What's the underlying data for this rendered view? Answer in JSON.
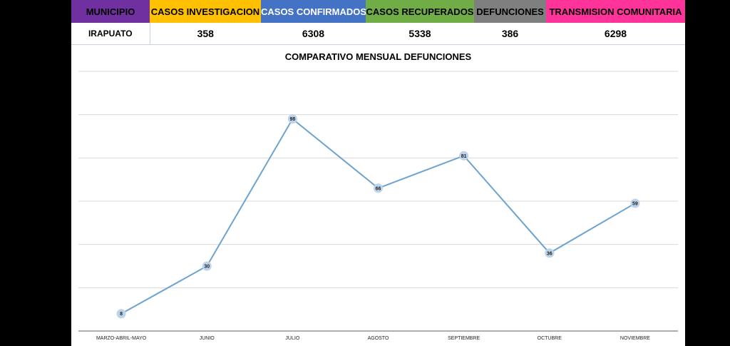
{
  "summary": {
    "headers": [
      {
        "label": "MUNICIPIO",
        "bg": "#7030a0",
        "color": "#000000"
      },
      {
        "label": "CASOS INVESTIGACION",
        "bg": "#ffc000",
        "color": "#000000"
      },
      {
        "label": "CASOS CONFIRMADOS",
        "bg": "#4472c4",
        "color": "#ffffff"
      },
      {
        "label": "CASOS RECUPERADOS",
        "bg": "#70ad47",
        "color": "#000000"
      },
      {
        "label": "DEFUNCIONES",
        "bg": "#7f7f7f",
        "color": "#000000"
      },
      {
        "label": "TRANSMISION COMUNITARIA",
        "bg": "#ff3399",
        "color": "#000000"
      }
    ],
    "row": [
      "IRAPUATO",
      "358",
      "6308",
      "5338",
      "386",
      "6298"
    ]
  },
  "chart_data": {
    "type": "line",
    "title": "COMPARATIVO MENSUAL DEFUNCIONES",
    "categories": [
      "MARZO-ABRIL-MAYO",
      "JUNIO",
      "JULIO",
      "AGOSTO",
      "SEPTIEMBRE",
      "OCTUBRE",
      "NOVIEMBRE"
    ],
    "series": [
      {
        "values": [
          8,
          30,
          98,
          66,
          81,
          36,
          59
        ],
        "color": "#6ea3d0"
      }
    ],
    "ylim": [
      0,
      120
    ],
    "gridlines": [
      0,
      20,
      40,
      60,
      80,
      100,
      120
    ],
    "grid": true,
    "y_tick_labels_shown": false,
    "legend": "none",
    "data_labels": true
  }
}
